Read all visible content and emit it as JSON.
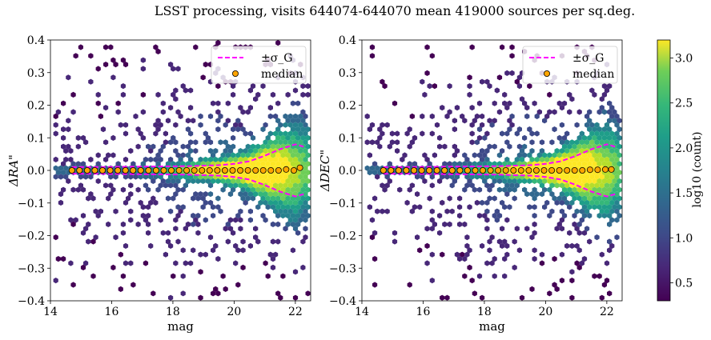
{
  "figure": {
    "title": "LSST processing, visits 644074-644070 mean 419000 sources per sq.deg."
  },
  "chart_data": [
    {
      "type": "heatmap",
      "panel": "left",
      "title": "",
      "xlabel": "mag",
      "ylabel": "ΔRA\"",
      "xlim": [
        14,
        22.5
      ],
      "ylim": [
        -0.4,
        0.4
      ],
      "x_ticks": [
        "14",
        "16",
        "18",
        "20",
        "22"
      ],
      "y_ticks": [
        "−0.4",
        "−0.3",
        "−0.2",
        "−0.1",
        "0.0",
        "0.1",
        "0.2",
        "0.3",
        "0.4"
      ],
      "legend_position": "top-right",
      "legend": [
        {
          "label": "±σ_G",
          "style": "dashed-line",
          "color": "#ff00ff"
        },
        {
          "label": "median",
          "style": "marker",
          "color": "#ffa500"
        }
      ],
      "series": [
        {
          "name": "median",
          "x": [
            14.7,
            14.95,
            15.2,
            15.45,
            15.7,
            15.95,
            16.2,
            16.45,
            16.7,
            16.95,
            17.2,
            17.45,
            17.7,
            17.95,
            18.2,
            18.45,
            18.7,
            18.95,
            19.2,
            19.45,
            19.7,
            19.95,
            20.2,
            20.45,
            20.7,
            20.95,
            21.2,
            21.45,
            21.7,
            21.95,
            22.15
          ],
          "y": [
            0.0,
            0.0,
            0.0,
            0.0,
            0.0,
            0.0,
            0.0,
            0.0,
            0.0,
            0.0,
            0.0,
            0.0,
            0.0,
            0.0,
            0.0,
            0.0,
            0.0,
            0.0,
            0.0,
            0.0,
            0.0,
            0.0,
            0.0,
            0.0,
            0.0,
            0.0,
            0.0,
            0.0,
            0.003,
            0.0,
            0.008
          ]
        },
        {
          "name": "±σ_G",
          "x": [
            14.7,
            15.5,
            16.5,
            17.5,
            18.5,
            19.5,
            20.0,
            20.5,
            21.0,
            21.5,
            22.0,
            22.3
          ],
          "y": [
            0.01,
            0.01,
            0.011,
            0.012,
            0.013,
            0.016,
            0.02,
            0.028,
            0.045,
            0.065,
            0.08,
            0.072
          ]
        }
      ]
    },
    {
      "type": "heatmap",
      "panel": "right",
      "title": "",
      "xlabel": "mag",
      "ylabel": "ΔDEC\"",
      "xlim": [
        14,
        22.5
      ],
      "ylim": [
        -0.4,
        0.4
      ],
      "x_ticks": [
        "14",
        "16",
        "18",
        "20",
        "22"
      ],
      "y_ticks": [
        "−0.4",
        "−0.3",
        "−0.2",
        "−0.1",
        "0.0",
        "0.1",
        "0.2",
        "0.3",
        "0.4"
      ],
      "legend_position": "top-right",
      "legend": [
        {
          "label": "±σ_G",
          "style": "dashed-line",
          "color": "#ff00ff"
        },
        {
          "label": "median",
          "style": "marker",
          "color": "#ffa500"
        }
      ],
      "series": [
        {
          "name": "median",
          "x": [
            14.7,
            14.95,
            15.2,
            15.45,
            15.7,
            15.95,
            16.2,
            16.45,
            16.7,
            16.95,
            17.2,
            17.45,
            17.7,
            17.95,
            18.2,
            18.45,
            18.7,
            18.95,
            19.2,
            19.45,
            19.7,
            19.95,
            20.2,
            20.45,
            20.7,
            20.95,
            21.2,
            21.45,
            21.7,
            21.95,
            22.15
          ],
          "y": [
            0.0,
            0.0,
            0.0,
            0.0,
            0.0,
            0.0,
            0.0,
            0.0,
            0.0,
            0.0,
            0.0,
            0.0,
            0.0,
            0.0,
            0.0,
            0.0,
            0.0,
            0.0,
            0.0,
            0.0,
            0.0,
            0.0,
            0.0,
            0.0,
            0.0,
            0.0,
            0.0,
            0.002,
            0.002,
            0.003,
            0.003
          ]
        },
        {
          "name": "±σ_G",
          "x": [
            14.7,
            15.5,
            16.5,
            17.5,
            18.5,
            19.5,
            20.0,
            20.5,
            21.0,
            21.5,
            22.0,
            22.3
          ],
          "y": [
            0.01,
            0.01,
            0.011,
            0.012,
            0.013,
            0.016,
            0.02,
            0.028,
            0.045,
            0.065,
            0.08,
            0.072
          ]
        }
      ]
    }
  ],
  "colorbar": {
    "label": "log10 (count)",
    "range": [
      0.3,
      3.2
    ],
    "ticks": [
      "0.5",
      "1.0",
      "1.5",
      "2.0",
      "2.5",
      "3.0"
    ],
    "colormap": "viridis"
  }
}
